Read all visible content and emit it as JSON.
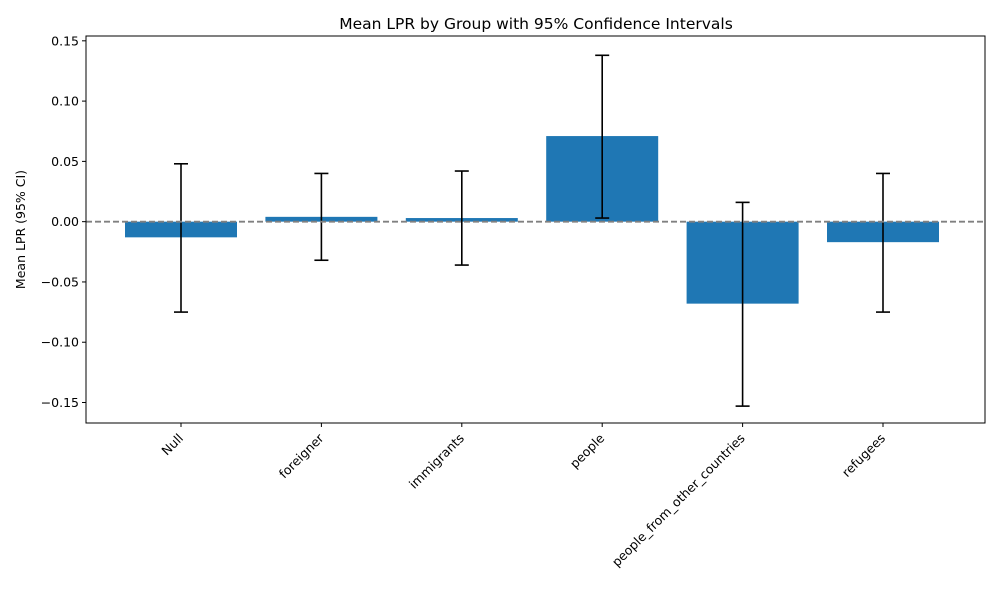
{
  "chart_data": {
    "type": "bar",
    "title": "Mean LPR by Group with 95% Confidence Intervals",
    "xlabel": "",
    "ylabel": "Mean LPR (95% CI)",
    "categories": [
      "Null",
      "foreigner",
      "immigrants",
      "people",
      "people_from_other_countries",
      "refugees"
    ],
    "values": [
      -0.013,
      0.004,
      0.003,
      0.071,
      -0.068,
      -0.017
    ],
    "ci_low": [
      -0.075,
      -0.032,
      -0.036,
      0.003,
      -0.153,
      -0.075
    ],
    "ci_high": [
      0.048,
      0.04,
      0.042,
      0.138,
      0.016,
      0.04
    ],
    "ylim": [
      -0.167,
      0.154
    ],
    "yticks": [
      -0.15,
      -0.1,
      -0.05,
      0.0,
      0.05,
      0.1,
      0.15
    ],
    "ytick_labels": [
      "−0.15",
      "−0.10",
      "−0.05",
      "0.00",
      "0.05",
      "0.10",
      "0.15"
    ],
    "reference_line": 0,
    "bar_color": "#1f77b4",
    "error_color": "#000000",
    "reference_line_color": "#808080",
    "grid": false
  }
}
